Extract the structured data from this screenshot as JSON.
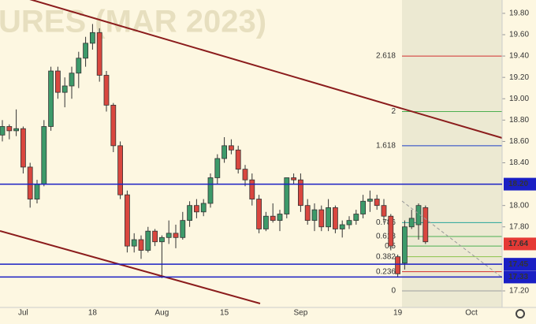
{
  "chart_data": {
    "type": "candlestick",
    "watermark": "URES (MAR 2023)",
    "categories": [
      null,
      null,
      null,
      "Jul",
      null,
      null,
      null,
      null,
      null,
      null,
      null,
      null,
      null,
      "18",
      null,
      null,
      null,
      null,
      null,
      null,
      null,
      null,
      null,
      "Aug",
      null,
      null,
      null,
      null,
      null,
      null,
      null,
      null,
      "15",
      null,
      null,
      null,
      null,
      null,
      null,
      null,
      null,
      null,
      null,
      "Sep",
      null,
      null,
      null,
      null,
      null,
      null,
      null,
      null,
      null,
      null,
      null,
      null,
      null,
      "19",
      null,
      null,
      null,
      null
    ],
    "open": [
      18.66,
      18.74,
      18.7,
      18.72,
      18.36,
      18.06,
      18.2,
      18.74,
      19.26,
      19.06,
      19.12,
      19.24,
      19.38,
      19.52,
      19.62,
      19.22,
      18.94,
      18.56,
      18.1,
      17.62,
      17.68,
      17.58,
      17.76,
      17.66,
      17.7,
      17.74,
      17.7,
      17.86,
      18.0,
      17.94,
      18.02,
      18.26,
      18.44,
      18.56,
      18.52,
      18.34,
      18.24,
      18.06,
      17.78,
      17.9,
      17.86,
      17.92,
      18.26,
      18.24,
      18.0,
      17.86,
      17.96,
      17.8,
      17.98,
      17.78,
      17.82,
      17.86,
      17.92,
      18.04,
      18.06,
      18.0,
      17.9,
      17.52,
      17.46,
      17.8,
      17.82,
      17.98
    ],
    "high": [
      18.8,
      18.76,
      18.9,
      18.74,
      18.4,
      18.24,
      18.8,
      19.3,
      19.3,
      19.2,
      19.3,
      19.44,
      19.58,
      19.7,
      19.66,
      19.26,
      18.96,
      18.6,
      18.14,
      17.74,
      17.72,
      17.8,
      17.78,
      17.72,
      17.86,
      17.82,
      17.94,
      18.04,
      18.06,
      18.06,
      18.3,
      18.48,
      18.64,
      18.62,
      18.56,
      18.38,
      18.3,
      18.1,
      17.94,
      18.02,
      17.96,
      18.26,
      18.3,
      18.3,
      18.06,
      18.02,
      18.0,
      18.06,
      18.0,
      17.86,
      17.9,
      17.96,
      18.1,
      18.14,
      18.1,
      18.06,
      17.92,
      17.54,
      17.86,
      17.96,
      18.02,
      18.0
    ],
    "low": [
      18.6,
      18.62,
      18.65,
      18.3,
      17.98,
      18.02,
      18.18,
      18.7,
      19.0,
      18.92,
      19.0,
      19.1,
      19.3,
      19.46,
      19.16,
      18.88,
      18.5,
      18.06,
      17.56,
      17.56,
      17.5,
      17.56,
      17.62,
      17.32,
      17.64,
      17.6,
      17.68,
      17.8,
      17.88,
      17.9,
      17.98,
      18.2,
      18.4,
      18.48,
      18.3,
      18.18,
      18.0,
      17.74,
      17.76,
      17.84,
      17.76,
      17.88,
      18.2,
      17.94,
      17.82,
      17.76,
      17.76,
      17.76,
      17.74,
      17.7,
      17.78,
      17.82,
      17.88,
      17.94,
      17.96,
      17.84,
      17.58,
      17.33,
      17.4,
      17.78,
      17.68,
      17.64
    ],
    "close": [
      18.74,
      18.7,
      18.72,
      18.36,
      18.06,
      18.2,
      18.74,
      19.26,
      19.06,
      19.12,
      19.24,
      19.38,
      19.52,
      19.62,
      19.22,
      18.94,
      18.56,
      18.1,
      17.62,
      17.68,
      17.58,
      17.76,
      17.66,
      17.7,
      17.74,
      17.7,
      17.86,
      18.0,
      17.94,
      18.02,
      18.26,
      18.44,
      18.56,
      18.52,
      18.34,
      18.24,
      18.06,
      17.78,
      17.9,
      17.86,
      17.92,
      18.26,
      18.24,
      18.0,
      17.86,
      17.96,
      17.8,
      17.98,
      17.78,
      17.82,
      17.86,
      17.92,
      18.04,
      18.06,
      18.0,
      17.9,
      17.62,
      17.36,
      17.8,
      17.88,
      18.0,
      17.66
    ],
    "up_color": "#3d9a6a",
    "down_color": "#d9473f",
    "future_x_label": "Oct",
    "ylim": [
      17.045,
      19.925
    ],
    "yticks": [
      {
        "value": 17.2,
        "label": "17.20"
      },
      {
        "value": 17.8,
        "label": "17.80"
      },
      {
        "value": 18.0,
        "label": "18.00"
      },
      {
        "value": 18.4,
        "label": "18.40"
      },
      {
        "value": 18.6,
        "label": "18.60"
      },
      {
        "value": 18.8,
        "label": "18.80"
      },
      {
        "value": 19.0,
        "label": "19.00"
      },
      {
        "value": 19.2,
        "label": "19.20"
      },
      {
        "value": 19.4,
        "label": "19.40"
      },
      {
        "value": 19.6,
        "label": "19.60"
      },
      {
        "value": 19.8,
        "label": "19.80"
      }
    ],
    "fib_levels": [
      {
        "label": "2.618",
        "price": 19.4,
        "color": "#d32f2f"
      },
      {
        "label": "2",
        "price": 18.88,
        "color": "#4caf50"
      },
      {
        "label": "1.618",
        "price": 18.56,
        "color": "#1e3fc8"
      },
      {
        "label": "0.786",
        "price": 17.84,
        "color": "#26a69a"
      },
      {
        "label": "0.618",
        "price": 17.71,
        "color": "#4caf50"
      },
      {
        "label": "0.5",
        "price": 17.62,
        "color": "#4caf50"
      },
      {
        "label": "0.382",
        "price": 17.52,
        "color": "#8bc34a"
      },
      {
        "label": "0.236",
        "price": 17.38,
        "color": "#d32f2f"
      },
      {
        "label": "0",
        "price": 17.2,
        "color": "#9e9e9e"
      }
    ],
    "price_tags": [
      {
        "value": 18.2,
        "label": "18.20",
        "color": "#1a1fc4",
        "line": true
      },
      {
        "value": 17.64,
        "label": "17.64",
        "color": "#e53935",
        "line": false
      },
      {
        "value": 17.45,
        "label": "17.45",
        "color": "#1a1fc4",
        "line": true
      },
      {
        "value": 17.33,
        "label": "17.33",
        "color": "#1a1fc4",
        "line": true
      }
    ]
  }
}
